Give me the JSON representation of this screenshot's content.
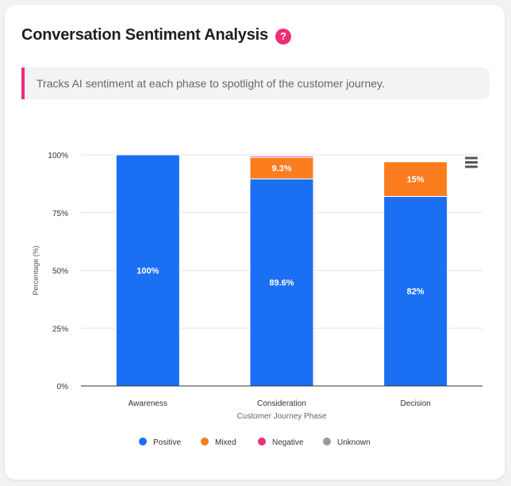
{
  "card": {
    "title": "Conversation Sentiment Analysis",
    "help_glyph": "?",
    "description": "Tracks AI sentiment at each phase to spotlight of the customer journey."
  },
  "colors": {
    "Positive": "#1a6ff2",
    "Mixed": "#fb7d1e",
    "Negative": "#ee2d7a",
    "Unknown": "#999999",
    "accent": "#ee2d7a"
  },
  "icons": {
    "help": "question-circle-icon",
    "menu": "hamburger-menu-icon"
  },
  "chart_data": {
    "type": "bar",
    "stacked": true,
    "categories": [
      "Awareness",
      "Consideration",
      "Decision"
    ],
    "series": [
      {
        "name": "Positive",
        "values": [
          100,
          89.6,
          82
        ],
        "labels": [
          "100%",
          "89.6%",
          "82%"
        ]
      },
      {
        "name": "Mixed",
        "values": [
          0,
          9.3,
          15
        ],
        "labels": [
          "",
          "9.3%",
          "15%"
        ]
      },
      {
        "name": "Negative",
        "values": [
          0,
          0.6,
          0
        ],
        "labels": [
          "",
          "",
          ""
        ]
      },
      {
        "name": "Unknown",
        "values": [
          0,
          0,
          0
        ],
        "labels": [
          "",
          "",
          ""
        ]
      }
    ],
    "xlabel": "Customer Journey Phase",
    "ylabel": "Percentage (%)",
    "yticks": [
      "0%",
      "25%",
      "50%",
      "75%",
      "100%"
    ],
    "ylim": [
      0,
      100
    ],
    "grid": true,
    "legend_position": "bottom"
  }
}
